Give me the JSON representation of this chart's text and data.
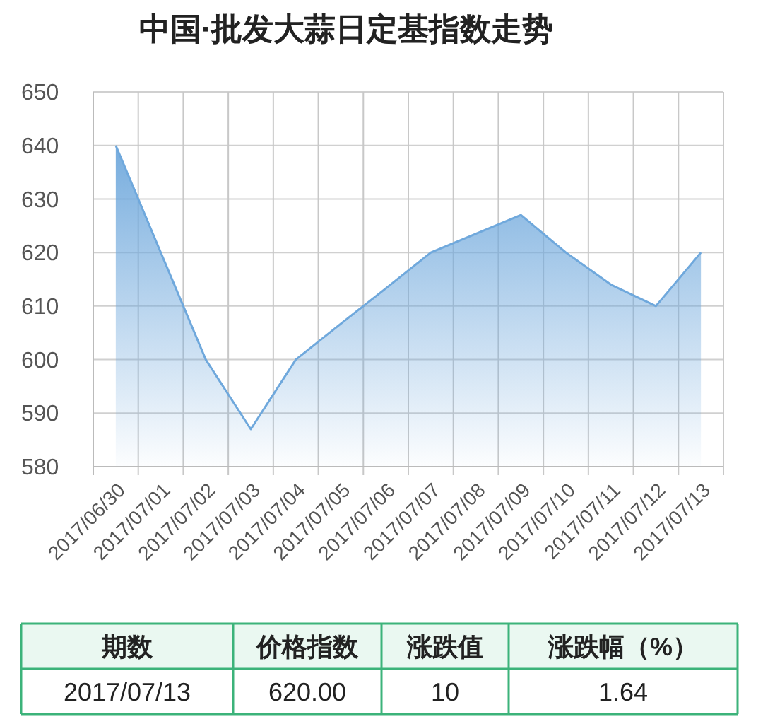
{
  "chart_data": {
    "type": "area",
    "title": "中国·批发大蒜日定基指数走势",
    "categories": [
      "2017/06/30",
      "2017/07/01",
      "2017/07/02",
      "2017/07/03",
      "2017/07/04",
      "2017/07/05",
      "2017/07/06",
      "2017/07/07",
      "2017/07/08",
      "2017/07/09",
      "2017/07/10",
      "2017/07/11",
      "2017/07/12",
      "2017/07/13"
    ],
    "series": [
      {
        "color": "#6fa8dc",
        "values": [
          640,
          620,
          600,
          587,
          600,
          606.7,
          613.3,
          620,
          623.5,
          627,
          620,
          614,
          610,
          620
        ]
      }
    ],
    "ylim": [
      580,
      650
    ],
    "yticks": [
      580,
      590,
      600,
      610,
      620,
      630,
      640,
      650
    ],
    "grid": true,
    "annotations": [
      "期数",
      "价格指数",
      "涨跌值",
      "涨跌幅（%）",
      "2017/07/13",
      "620.00",
      "10",
      "1.64"
    ]
  }
}
